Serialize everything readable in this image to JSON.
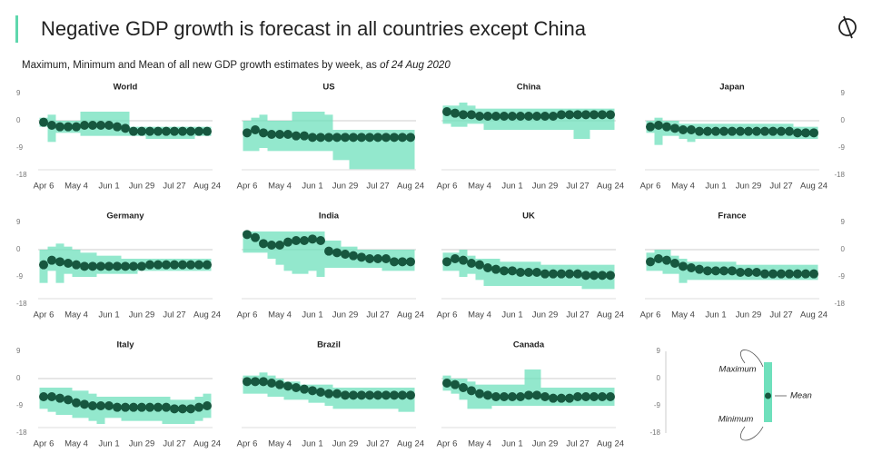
{
  "chart_data": {
    "type": "range-dot",
    "title": "Negative GDP growth is forecast in all countries except China",
    "subtitle": "Maximum, Minimum and Mean of all new GDP growth estimates by week, as ",
    "subtitle_date": "of 24 Aug 2020",
    "categories": [
      "Apr 6",
      null,
      null,
      null,
      "May 4",
      null,
      null,
      null,
      "Jun 1",
      null,
      null,
      null,
      "Jun 29",
      null,
      null,
      null,
      "Jul 27",
      null,
      null,
      null,
      "Aug 24"
    ],
    "ylim": [
      -18,
      9
    ],
    "yticks": [
      -18,
      -9,
      0,
      9
    ],
    "range_color": "#6fe0bc",
    "mean_color": "#17573f",
    "legend": {
      "max": "Maximum",
      "mean": "Mean",
      "min": "Minimum"
    },
    "panels": [
      {
        "title": "World",
        "mean": [
          -0.5,
          -1.5,
          -2,
          -2,
          -2,
          -1.5,
          -1.5,
          -1.5,
          -1.5,
          -2,
          -2.5,
          -3.5,
          -3.5,
          -3.5,
          -3.5,
          -3.5,
          -3.5,
          -3.5,
          -3.5,
          -3.5,
          -3.5
        ],
        "max": [
          1,
          2,
          0,
          0,
          0,
          3,
          3,
          3,
          3,
          3,
          3,
          -2,
          -2,
          -2,
          -2,
          -2,
          -2,
          -2,
          -2,
          -2,
          -2
        ],
        "min": [
          -2,
          -7,
          -4,
          -4,
          -4,
          -5,
          -5,
          -5,
          -5,
          -5,
          -5,
          -5,
          -5,
          -6,
          -6,
          -6,
          -6,
          -6,
          -6,
          -5,
          -5
        ]
      },
      {
        "title": "US",
        "mean": [
          -4,
          -3,
          -4,
          -4.5,
          -4.5,
          -4.5,
          -5,
          -5,
          -5.5,
          -5.5,
          -5.5,
          -5.5,
          -5.5,
          -5.5,
          -5.5,
          -5.5,
          -5.5,
          -5.5,
          -5.5,
          -5.5,
          -5.5
        ],
        "max": [
          0,
          1,
          2,
          0,
          0,
          0,
          3,
          3,
          3,
          3,
          2,
          -3,
          -3,
          -3,
          -3,
          -3,
          -3,
          -3,
          -3,
          -3,
          -3
        ],
        "min": [
          -10,
          -10,
          -9,
          -10,
          -10,
          -10,
          -10,
          -10,
          -10,
          -10,
          -10,
          -13,
          -13,
          -16,
          -16,
          -16,
          -16,
          -16,
          -16,
          -16,
          -16
        ]
      },
      {
        "title": "China",
        "mean": [
          3,
          2.5,
          2,
          2,
          1.5,
          1.5,
          1.5,
          1.5,
          1.5,
          1.5,
          1.5,
          1.5,
          1.5,
          1.5,
          2,
          2,
          2,
          2,
          2,
          2,
          2
        ],
        "max": [
          5,
          5,
          6,
          5,
          4,
          4,
          4,
          4,
          4,
          4,
          4,
          4,
          4,
          4,
          4,
          4,
          4,
          4,
          4,
          4,
          4
        ],
        "min": [
          -1,
          -2,
          -2,
          -1,
          -1,
          -3,
          -3,
          -3,
          -3,
          -3,
          -3,
          -3,
          -3,
          -3,
          -3,
          -3,
          -6,
          -6,
          -3,
          -3,
          -3
        ]
      },
      {
        "title": "Japan",
        "mean": [
          -2,
          -1.5,
          -2,
          -2.5,
          -3,
          -3,
          -3.5,
          -3.5,
          -3.5,
          -3.5,
          -3.5,
          -3.5,
          -3.5,
          -3.5,
          -3.5,
          -3.5,
          -3.5,
          -3.5,
          -4,
          -4,
          -4
        ],
        "max": [
          0,
          1,
          0,
          0,
          -1,
          -1,
          -1,
          -1,
          -1,
          -1,
          -1,
          -1,
          -1,
          -1,
          -1,
          -1,
          -1,
          -1,
          -2,
          -2,
          -2
        ],
        "min": [
          -4,
          -8,
          -5,
          -5,
          -6,
          -7,
          -6,
          -6,
          -6,
          -6,
          -6,
          -6,
          -6,
          -6,
          -6,
          -6,
          -6,
          -6,
          -6,
          -6,
          -6
        ]
      },
      {
        "title": "Germany",
        "mean": [
          -5,
          -3.5,
          -4,
          -4.5,
          -5,
          -5.5,
          -5.5,
          -5.5,
          -5.5,
          -5.5,
          -5.5,
          -5.5,
          -5.5,
          -5,
          -5,
          -5,
          -5,
          -5,
          -5,
          -5,
          -5
        ],
        "max": [
          0,
          1,
          2,
          1,
          0,
          -1,
          -1,
          -2,
          -2,
          -2,
          -3,
          -3,
          -3,
          -3,
          -3,
          -3,
          -3,
          -3,
          -3,
          -3,
          -3
        ],
        "min": [
          -11,
          -7,
          -11,
          -8,
          -9,
          -9,
          -9,
          -8,
          -8,
          -8,
          -8,
          -8,
          -7,
          -7,
          -7,
          -7,
          -7,
          -7,
          -7,
          -7,
          -7
        ]
      },
      {
        "title": "India",
        "mean": [
          5,
          4,
          2,
          1.5,
          1.5,
          2.5,
          3,
          3,
          3.5,
          3,
          -0.5,
          -1,
          -1.5,
          -2,
          -2.5,
          -3,
          -3,
          -3,
          -4,
          -4,
          -4
        ],
        "max": [
          6,
          6,
          6,
          6,
          6,
          6,
          6,
          6,
          6,
          6,
          3,
          3,
          1,
          1,
          0,
          0,
          0,
          0,
          0,
          0,
          0
        ],
        "min": [
          -1,
          -1,
          -1,
          -3,
          -5,
          -7,
          -8,
          -8,
          -7,
          -9,
          -6,
          -6,
          -6,
          -6,
          -6,
          -6,
          -6,
          -7,
          -7,
          -7,
          -7
        ]
      },
      {
        "title": "UK",
        "mean": [
          -4,
          -3,
          -3.5,
          -4.5,
          -5,
          -6,
          -6.5,
          -7,
          -7,
          -7.5,
          -7.5,
          -7.5,
          -8,
          -8,
          -8,
          -8,
          -8,
          -8.5,
          -8.5,
          -8.5,
          -8.5
        ],
        "max": [
          -1,
          -1,
          0,
          -2,
          -3,
          -3,
          -3,
          -4,
          -4,
          -4,
          -4,
          -4,
          -5,
          -5,
          -5,
          -5,
          -5,
          -5,
          -5,
          -5,
          -5
        ],
        "min": [
          -7,
          -7,
          -9,
          -8,
          -10,
          -12,
          -12,
          -12,
          -12,
          -12,
          -12,
          -12,
          -12,
          -12,
          -12,
          -12,
          -12,
          -13,
          -13,
          -13,
          -13
        ]
      },
      {
        "title": "France",
        "mean": [
          -4,
          -3,
          -3.5,
          -4.5,
          -5.5,
          -6,
          -6.5,
          -7,
          -7,
          -7,
          -7,
          -7.5,
          -7.5,
          -7.5,
          -8,
          -8,
          -8,
          -8,
          -8,
          -8,
          -8
        ],
        "max": [
          -1,
          0,
          0,
          -2,
          -3,
          -4,
          -4,
          -4,
          -4,
          -4,
          -4,
          -5,
          -5,
          -5,
          -5,
          -5,
          -5,
          -5,
          -5,
          -5,
          -5
        ],
        "min": [
          -7,
          -7,
          -8,
          -8,
          -11,
          -10,
          -10,
          -10,
          -10,
          -10,
          -10,
          -10,
          -10,
          -10,
          -10,
          -10,
          -10,
          -10,
          -10,
          -10,
          -10
        ]
      },
      {
        "title": "Italy",
        "mean": [
          -6,
          -6,
          -6.5,
          -7,
          -8,
          -8.5,
          -9,
          -9,
          -9,
          -9.5,
          -9.5,
          -9.5,
          -9.5,
          -9.5,
          -9.5,
          -9.5,
          -10,
          -10,
          -10,
          -9.5,
          -9
        ],
        "max": [
          -3,
          -3,
          -3,
          -3,
          -4,
          -4,
          -5,
          -6,
          -6,
          -6,
          -6,
          -6,
          -6,
          -6,
          -6,
          -6,
          -7,
          -7,
          -7,
          -6,
          -5
        ],
        "min": [
          -10,
          -11,
          -12,
          -12,
          -13,
          -13,
          -14,
          -15,
          -13,
          -13,
          -14,
          -14,
          -14,
          -14,
          -14,
          -15,
          -15,
          -15,
          -15,
          -14,
          -13
        ]
      },
      {
        "title": "Brazil",
        "mean": [
          -1,
          -1,
          -1,
          -1.5,
          -2,
          -2.5,
          -3,
          -3.5,
          -4,
          -4.5,
          -5,
          -5,
          -5.5,
          -5.5,
          -5.5,
          -5.5,
          -5.5,
          -5.5,
          -5.5,
          -5.5,
          -5.5
        ],
        "max": [
          1,
          1,
          2,
          1,
          0,
          -1,
          -1,
          -2,
          -2,
          -2,
          -2,
          -3,
          -3,
          -3,
          -3,
          -3,
          -3,
          -3,
          -3,
          -3,
          -3
        ],
        "min": [
          -5,
          -5,
          -5,
          -6,
          -6,
          -7,
          -7,
          -7,
          -8,
          -8,
          -9,
          -10,
          -10,
          -10,
          -10,
          -10,
          -10,
          -10,
          -10,
          -11,
          -11
        ]
      },
      {
        "title": "Canada",
        "mean": [
          -1.5,
          -2,
          -3,
          -4,
          -5,
          -5.5,
          -6,
          -6,
          -6,
          -6,
          -5.5,
          -5.5,
          -6,
          -6.5,
          -6.5,
          -6.5,
          -6,
          -6,
          -6,
          -6,
          -6
        ],
        "max": [
          1,
          0,
          0,
          -1,
          -2,
          -2,
          -2,
          -2,
          -2,
          -2,
          3,
          3,
          -3,
          -3,
          -3,
          -3,
          -3,
          -3,
          -3,
          -3,
          -3
        ],
        "min": [
          -4,
          -5,
          -7,
          -10,
          -10,
          -10,
          -9,
          -9,
          -9,
          -9,
          -9,
          -9,
          -9,
          -9,
          -9,
          -9,
          -9,
          -9,
          -9,
          -9,
          -9
        ]
      }
    ]
  }
}
